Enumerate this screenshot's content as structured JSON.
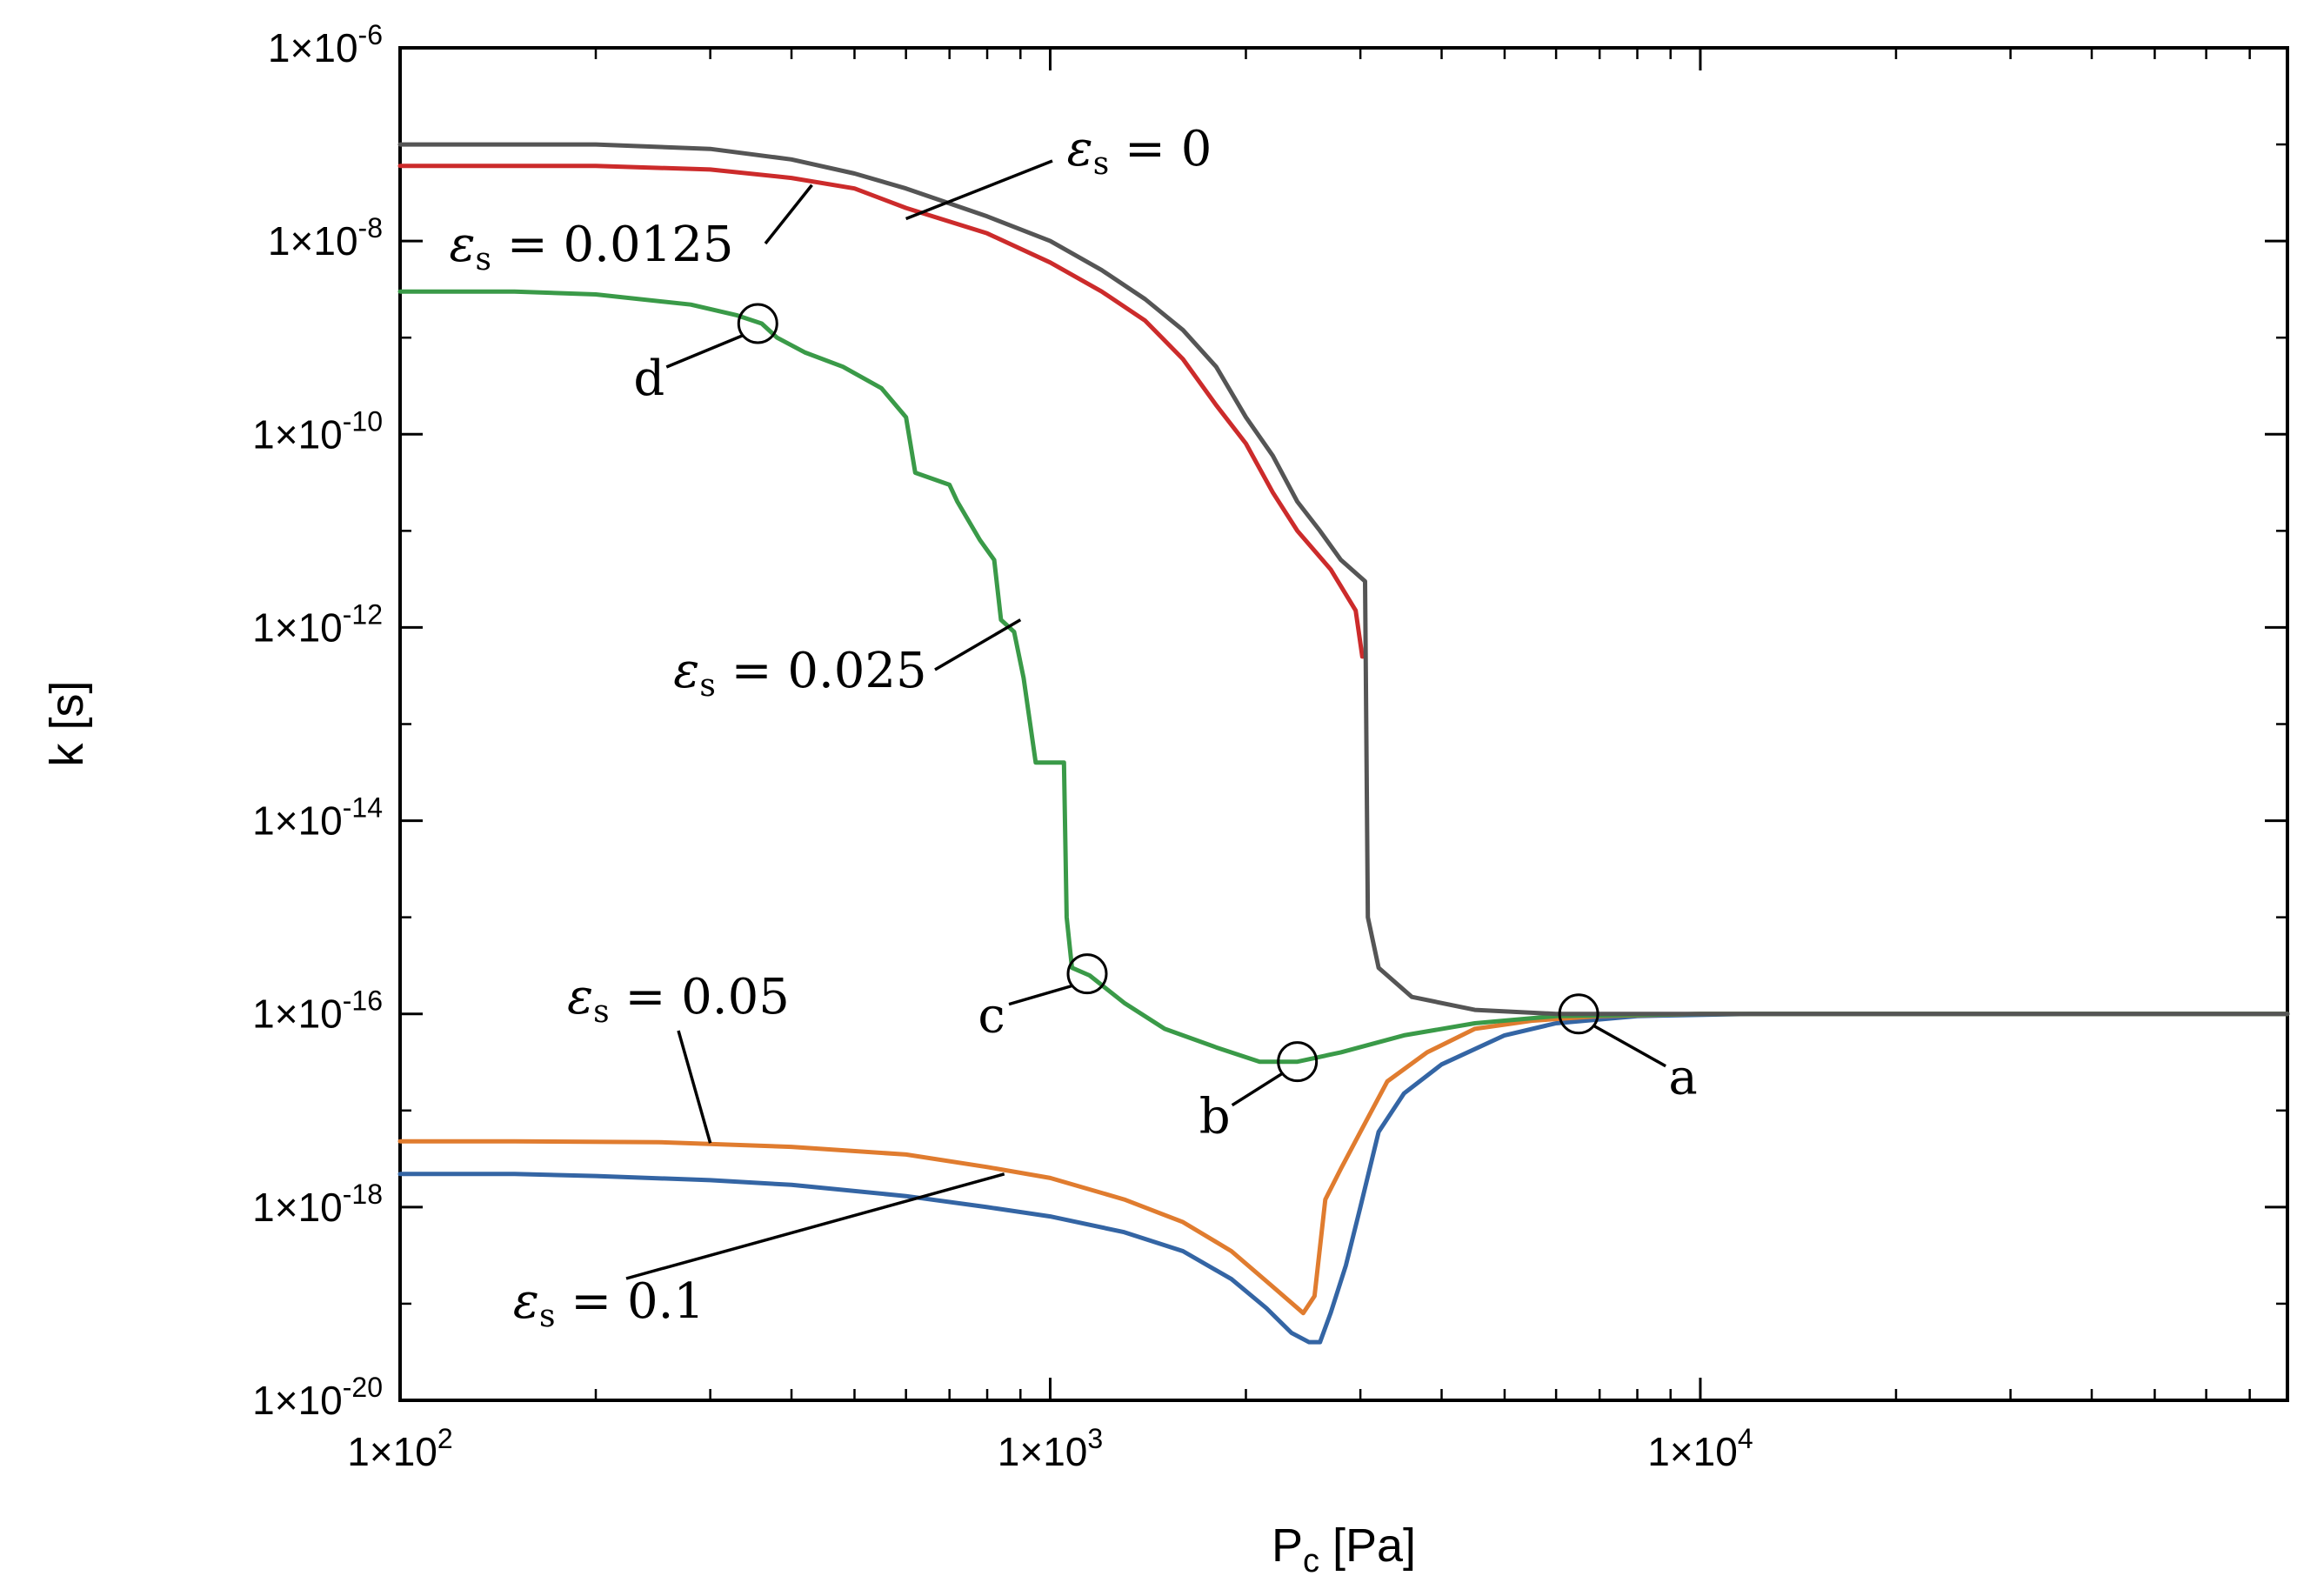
{
  "chart_data": {
    "type": "line",
    "xscale": "log",
    "yscale": "log",
    "xlabel": "P",
    "xlabel_sub": "c",
    "xlabel_unit": " [Pa]",
    "ylabel": "k [s]",
    "xlim": [
      100,
      80000
    ],
    "ylim": [
      1e-20,
      1e-06
    ],
    "grid": false,
    "x_ticks": [
      {
        "value": 100,
        "base": "1×10",
        "exp": "2"
      },
      {
        "value": 1000,
        "base": "1×10",
        "exp": "3"
      },
      {
        "value": 10000,
        "base": "1×10",
        "exp": "4"
      }
    ],
    "y_ticks": [
      {
        "value": 1e-06,
        "base": "1×10",
        "exp": "-6"
      },
      {
        "value": 1e-08,
        "base": "1×10",
        "exp": "-8"
      },
      {
        "value": 1e-10,
        "base": "1×10",
        "exp": "-10"
      },
      {
        "value": 1e-12,
        "base": "1×10",
        "exp": "-12"
      },
      {
        "value": 1e-14,
        "base": "1×10",
        "exp": "-14"
      },
      {
        "value": 1e-16,
        "base": "1×10",
        "exp": "-16"
      },
      {
        "value": 1e-18,
        "base": "1×10",
        "exp": "-18"
      },
      {
        "value": 1e-20,
        "base": "1×10",
        "exp": "-20"
      }
    ],
    "series": [
      {
        "name": "eps_s = 0.1",
        "label_value": "0.1",
        "color": "#3465a4",
        "points": [
          [
            100,
            2.2e-18
          ],
          [
            150,
            2.2e-18
          ],
          [
            200,
            2.1e-18
          ],
          [
            300,
            1.9e-18
          ],
          [
            400,
            1.7e-18
          ],
          [
            600,
            1.3e-18
          ],
          [
            800,
            1e-18
          ],
          [
            1000,
            8e-19
          ],
          [
            1300,
            5.5e-19
          ],
          [
            1600,
            3.5e-19
          ],
          [
            1900,
            1.8e-19
          ],
          [
            2150,
            9e-20
          ],
          [
            2350,
            5e-20
          ],
          [
            2500,
            4e-20
          ],
          [
            2600,
            4e-20
          ],
          [
            2700,
            8e-20
          ],
          [
            2850,
            2.5e-19
          ],
          [
            3000,
            1e-18
          ],
          [
            3200,
            6e-18
          ],
          [
            3500,
            1.5e-17
          ],
          [
            4000,
            3e-17
          ],
          [
            5000,
            6e-17
          ],
          [
            6000,
            8e-17
          ],
          [
            8000,
            9.5e-17
          ],
          [
            12000,
            1e-16
          ],
          [
            30000,
            1e-16
          ],
          [
            80000,
            1e-16
          ]
        ]
      },
      {
        "name": "eps_s = 0.05",
        "label_value": "0.05",
        "color": "#e07c2f",
        "points": [
          [
            100,
            4.8e-18
          ],
          [
            150,
            4.8e-18
          ],
          [
            250,
            4.7e-18
          ],
          [
            400,
            4.2e-18
          ],
          [
            600,
            3.5e-18
          ],
          [
            800,
            2.6e-18
          ],
          [
            1000,
            2e-18
          ],
          [
            1300,
            1.2e-18
          ],
          [
            1600,
            7e-19
          ],
          [
            1900,
            3.5e-19
          ],
          [
            2200,
            1.5e-19
          ],
          [
            2450,
            8e-20
          ],
          [
            2550,
            1.2e-19
          ],
          [
            2650,
            1.2e-18
          ],
          [
            2800,
            2.5e-18
          ],
          [
            3000,
            6e-18
          ],
          [
            3300,
            2e-17
          ],
          [
            3800,
            4e-17
          ],
          [
            4500,
            7e-17
          ],
          [
            5500,
            8.5e-17
          ],
          [
            7000,
            9.5e-17
          ],
          [
            10000,
            1e-16
          ],
          [
            30000,
            1e-16
          ],
          [
            80000,
            1e-16
          ]
        ]
      },
      {
        "name": "eps_s = 0.025",
        "label_value": "0.025",
        "color": "#3a9a48",
        "points": [
          [
            100,
            3e-09
          ],
          [
            150,
            3e-09
          ],
          [
            200,
            2.8e-09
          ],
          [
            280,
            2.2e-09
          ],
          [
            330,
            1.7e-09
          ],
          [
            360,
            1.4e-09
          ],
          [
            380,
            1e-09
          ],
          [
            420,
            7e-10
          ],
          [
            480,
            5e-10
          ],
          [
            550,
            3e-10
          ],
          [
            600,
            1.5e-10
          ],
          [
            620,
            4e-11
          ],
          [
            700,
            3e-11
          ],
          [
            720,
            2e-11
          ],
          [
            780,
            8e-12
          ],
          [
            820,
            5e-12
          ],
          [
            840,
            1.2e-12
          ],
          [
            880,
            9e-13
          ],
          [
            910,
            3e-13
          ],
          [
            950,
            4e-14
          ],
          [
            1050,
            4e-14
          ],
          [
            1060,
            1e-15
          ],
          [
            1080,
            3e-16
          ],
          [
            1150,
            2.5e-16
          ],
          [
            1300,
            1.3e-16
          ],
          [
            1500,
            7e-17
          ],
          [
            1800,
            4.5e-17
          ],
          [
            2100,
            3.2e-17
          ],
          [
            2400,
            3.2e-17
          ],
          [
            2800,
            4e-17
          ],
          [
            3500,
            6e-17
          ],
          [
            4500,
            8e-17
          ],
          [
            6000,
            9.5e-17
          ],
          [
            10000,
            1e-16
          ],
          [
            80000,
            1e-16
          ]
        ]
      },
      {
        "name": "eps_s = 0.0125",
        "label_value": "0.0125",
        "color": "#cc2b2b",
        "points": [
          [
            100,
            6e-08
          ],
          [
            150,
            6e-08
          ],
          [
            200,
            6e-08
          ],
          [
            300,
            5.5e-08
          ],
          [
            400,
            4.5e-08
          ],
          [
            500,
            3.5e-08
          ],
          [
            600,
            2.2e-08
          ],
          [
            800,
            1.2e-08
          ],
          [
            1000,
            6e-09
          ],
          [
            1200,
            3e-09
          ],
          [
            1400,
            1.5e-09
          ],
          [
            1600,
            6e-10
          ],
          [
            1800,
            2e-10
          ],
          [
            2000,
            8e-11
          ],
          [
            2200,
            2.5e-11
          ],
          [
            2400,
            1e-11
          ],
          [
            2700,
            4e-12
          ],
          [
            2950,
            1.5e-12
          ],
          [
            3020,
            5e-13
          ],
          [
            3030,
            5e-13
          ]
        ]
      },
      {
        "name": "eps_s = 0",
        "label_value": "0",
        "color": "#555555",
        "points": [
          [
            100,
            1e-07
          ],
          [
            150,
            1e-07
          ],
          [
            200,
            1e-07
          ],
          [
            300,
            9e-08
          ],
          [
            400,
            7e-08
          ],
          [
            500,
            5e-08
          ],
          [
            600,
            3.5e-08
          ],
          [
            800,
            1.8e-08
          ],
          [
            1000,
            1e-08
          ],
          [
            1200,
            5e-09
          ],
          [
            1400,
            2.5e-09
          ],
          [
            1600,
            1.2e-09
          ],
          [
            1800,
            5e-10
          ],
          [
            2000,
            1.5e-10
          ],
          [
            2200,
            6e-11
          ],
          [
            2400,
            2e-11
          ],
          [
            2600,
            1e-11
          ],
          [
            2800,
            5e-12
          ],
          [
            3050,
            3e-12
          ],
          [
            3080,
            1e-15
          ],
          [
            3200,
            3e-16
          ],
          [
            3600,
            1.5e-16
          ],
          [
            4500,
            1.1e-16
          ],
          [
            6000,
            1e-16
          ],
          [
            80000,
            1e-16
          ]
        ]
      }
    ],
    "markers": [
      {
        "label": "a",
        "x": 6500,
        "y": 1e-16
      },
      {
        "label": "b",
        "x": 2400,
        "y": 3.2e-17
      },
      {
        "label": "c",
        "x": 1140,
        "y": 2.6e-16
      },
      {
        "label": "d",
        "x": 355,
        "y": 1.4e-09
      }
    ],
    "annotation_symbol": "ε",
    "annotation_sub": "s",
    "annotation_eq": " = "
  }
}
